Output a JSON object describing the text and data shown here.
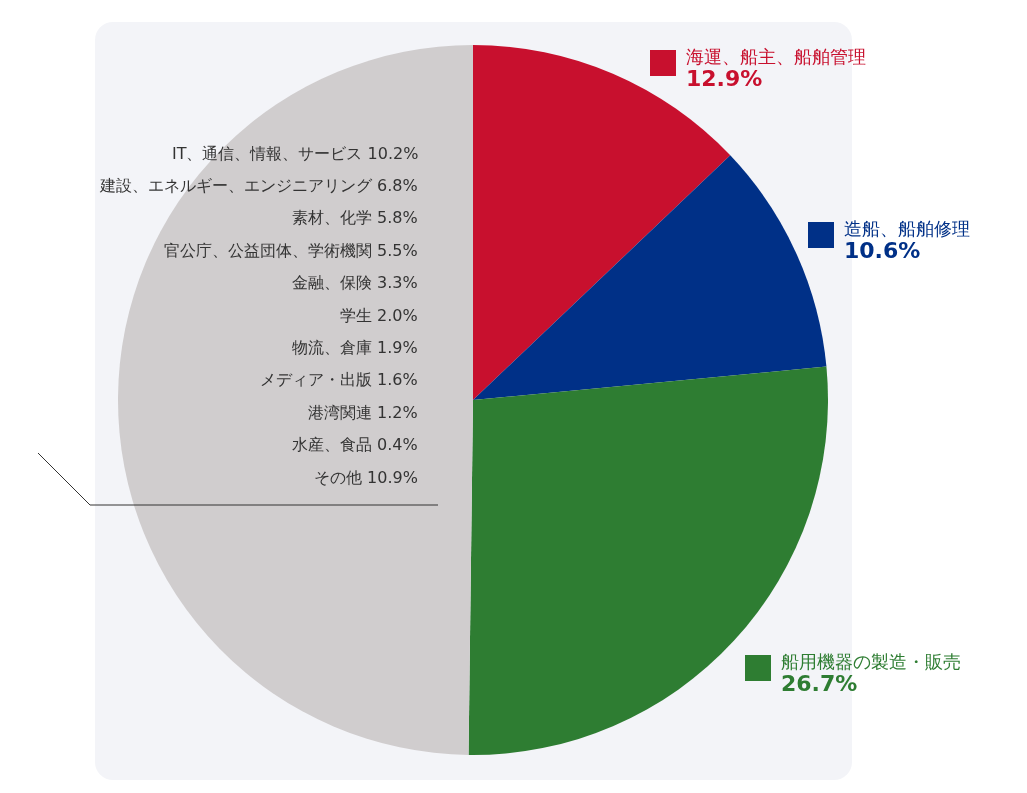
{
  "chart_data": {
    "type": "pie",
    "categories": [
      "海運、船主、船舶管理",
      "造船、船舶修理",
      "船用機器の製造・販売",
      null
    ],
    "values": [
      12.9,
      10.6,
      26.7,
      49.8
    ],
    "value_labels": [
      "12.9%",
      "10.6%",
      "26.7%",
      null
    ],
    "colors": [
      "#c8102e",
      "#003087",
      "#2e7d32",
      "#d0cdce"
    ],
    "legend": "right",
    "annotations": [
      "IT、通信、情報、サービス 10.2%",
      "建設、エネルギー、エンジニアリング 6.8%",
      "素材、化学 5.8%",
      "官公庁、公益団体、学術機関 5.5%",
      "金融、保険 3.3%",
      "学生 2.0%",
      "物流、倉庫 1.9%",
      "メディア・出版 1.6%",
      "港湾関連 1.2%",
      "水産、食品 0.4%",
      "その他 10.9%"
    ]
  }
}
